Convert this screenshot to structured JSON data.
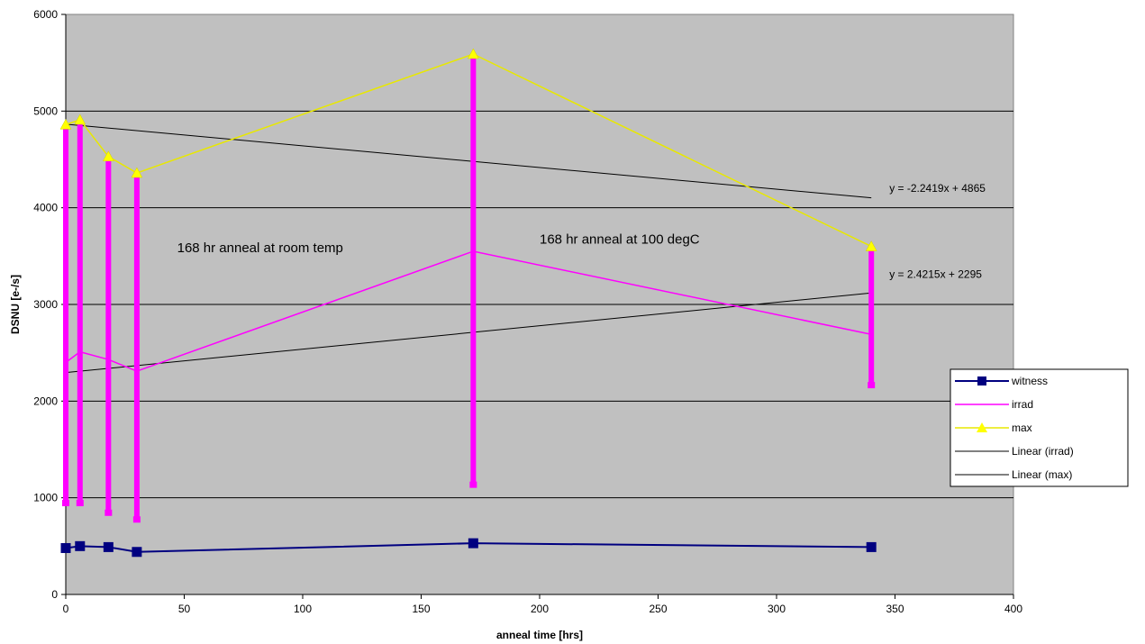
{
  "chart_data": {
    "type": "line",
    "xlabel": "anneal time [hrs]",
    "ylabel": "DSNU [e-/s]",
    "xlim": [
      0,
      400
    ],
    "ylim": [
      0,
      6000
    ],
    "xticks": [
      0,
      50,
      100,
      150,
      200,
      250,
      300,
      350,
      400
    ],
    "yticks": [
      0,
      1000,
      2000,
      3000,
      4000,
      5000,
      6000
    ],
    "grid": "horizontal",
    "legend_position": "right",
    "colors": {
      "plot_bg": "#c0c0c0",
      "witness": "#000080",
      "irrad": "#ff00ff",
      "max": "#ffff00",
      "linear": "#000000"
    },
    "series": [
      {
        "name": "witness",
        "x": [
          0,
          6,
          18,
          30,
          172,
          340
        ],
        "y": [
          480,
          500,
          490,
          440,
          530,
          490
        ]
      },
      {
        "name": "irrad",
        "x": [
          0,
          6,
          18,
          30,
          172,
          340
        ],
        "y": [
          2400,
          2510,
          2430,
          2310,
          3550,
          2690
        ]
      },
      {
        "name": "max",
        "x": [
          0,
          6,
          18,
          30,
          172,
          340
        ],
        "y": [
          4860,
          4910,
          4530,
          4360,
          5590,
          3600
        ]
      }
    ],
    "ranges": {
      "x": [
        0,
        6,
        18,
        30,
        172,
        340
      ],
      "low": [
        950,
        950,
        850,
        780,
        1140,
        2170
      ],
      "high": [
        4860,
        4910,
        4530,
        4360,
        5590,
        3600
      ]
    },
    "trendlines": [
      {
        "name": "Linear (irrad)",
        "slope": 2.4215,
        "intercept": 2295,
        "x_range": [
          0,
          340
        ],
        "equation": "y = 2.4215x + 2295"
      },
      {
        "name": "Linear (max)",
        "slope": -2.2419,
        "intercept": 4865,
        "x_range": [
          0,
          340
        ],
        "equation": "y = -2.2419x + 4865"
      }
    ],
    "annotations": [
      {
        "text": "168 hr anneal at room temp",
        "x": 47,
        "y": 3540
      },
      {
        "text": "168 hr anneal at 100 degC",
        "x": 200,
        "y": 3630
      }
    ],
    "legend": [
      "witness",
      "irrad",
      "max",
      "Linear (irrad)",
      "Linear (max)"
    ]
  }
}
